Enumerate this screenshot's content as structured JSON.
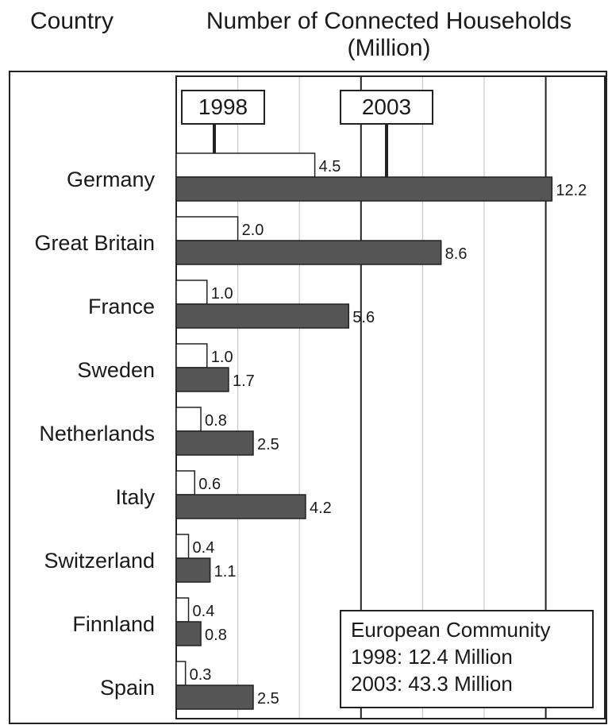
{
  "header": {
    "country_label": "Country",
    "title": "Number of Connected Households (Million)"
  },
  "legend": {
    "label_1998": "1998",
    "label_2003": "2003"
  },
  "summary": {
    "title": "European Community",
    "line_1998": "1998: 12.4 Million",
    "line_2003": "2003: 43.3 Million"
  },
  "colors": {
    "bar_1998": "#ffffff",
    "bar_2003": "#555555",
    "stroke": "#222222",
    "grid": "#bbbbbb",
    "grid_major": "#222222"
  },
  "chart_data": {
    "type": "bar",
    "orientation": "horizontal",
    "categories": [
      "Germany",
      "Great Britain",
      "France",
      "Sweden",
      "Netherlands",
      "Italy",
      "Switzerland",
      "Finnland",
      "Spain"
    ],
    "series": [
      {
        "name": "1998",
        "values": [
          4.5,
          2.0,
          1.0,
          1.0,
          0.8,
          0.6,
          0.4,
          0.4,
          0.3
        ]
      },
      {
        "name": "2003",
        "values": [
          12.2,
          8.6,
          5.6,
          1.7,
          2.5,
          4.2,
          1.1,
          0.8,
          2.5
        ]
      }
    ],
    "value_labels": [
      [
        "4.5",
        "2.0",
        "1.0",
        "1.0",
        "0.8",
        "0.6",
        "0.4",
        "0.4",
        "0.3"
      ],
      [
        "12.2",
        "8.6",
        "5.6",
        "1.7",
        "2.5",
        "4.2",
        "1.1",
        "0.8",
        "2.5"
      ]
    ],
    "xlim": [
      0,
      14
    ],
    "grid": true,
    "xlabel": "Number of Connected Households (Million)",
    "ylabel": "Country"
  }
}
